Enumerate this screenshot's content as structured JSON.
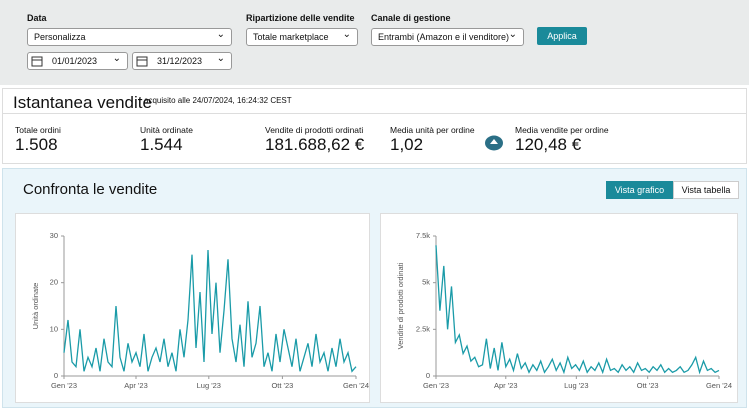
{
  "filters": {
    "date_label": "Data",
    "date_select": "Personalizza",
    "date_from": "01/01/2023",
    "date_to": "31/12/2023",
    "breakdown_label": "Ripartizione delle vendite",
    "breakdown_select": "Totale marketplace",
    "channel_label": "Canale di gestione",
    "channel_select": "Entrambi (Amazon e il venditore)",
    "apply": "Applica"
  },
  "snapshot": {
    "title": "Istantanea vendite",
    "acquired": "acquisito alle 24/07/2024, 16:24:32 CEST",
    "metrics": [
      {
        "label": "Totale ordini",
        "value": "1.508"
      },
      {
        "label": "Unità ordinate",
        "value": "1.544"
      },
      {
        "label": "Vendite di prodotti ordinati",
        "value": "181.688,62 €"
      },
      {
        "label": "Media unità per ordine",
        "value": "1,02"
      },
      {
        "label": "Media vendite per ordine",
        "value": "120,48 €"
      }
    ]
  },
  "compare": {
    "title": "Confronta le vendite",
    "view_chart": "Vista grafico",
    "view_table": "Vista tabella"
  },
  "chart_data": [
    {
      "type": "line",
      "y_label": "Unità ordinate",
      "color": "#1a9ba8",
      "x": [
        0,
        5,
        10,
        15,
        20,
        25,
        30,
        35,
        40,
        45,
        50,
        55,
        60,
        65,
        70,
        75,
        80,
        85,
        90,
        95,
        100,
        105,
        110,
        115,
        120,
        125,
        130,
        135,
        140,
        145,
        150,
        155,
        160,
        165,
        170,
        175,
        180,
        185,
        190,
        195,
        200,
        205,
        210,
        215,
        220,
        225,
        230,
        235,
        240,
        245,
        250,
        255,
        260,
        265,
        270,
        275,
        280,
        285,
        290,
        295,
        300,
        305,
        310,
        315,
        320,
        325,
        330,
        335,
        340,
        345,
        350,
        355,
        360,
        365
      ],
      "values": [
        5,
        12,
        3,
        2,
        10,
        1,
        4,
        2,
        6,
        1,
        8,
        3,
        2,
        15,
        4,
        1,
        7,
        3,
        5,
        2,
        9,
        1,
        4,
        6,
        3,
        8,
        2,
        5,
        1,
        10,
        4,
        12,
        26,
        6,
        18,
        3,
        27,
        9,
        20,
        5,
        14,
        25,
        8,
        3,
        11,
        2,
        16,
        4,
        7,
        15,
        2,
        5,
        1,
        9,
        3,
        10,
        6,
        2,
        8,
        1,
        4,
        7,
        2,
        9,
        3,
        5,
        1,
        6,
        2,
        8,
        3,
        5,
        1,
        2
      ],
      "xlim": [
        0,
        365
      ],
      "xticks": [
        {
          "value": 0,
          "label": "Gen '23"
        },
        {
          "value": 90,
          "label": "Apr '23"
        },
        {
          "value": 181,
          "label": "Lug '23"
        },
        {
          "value": 273,
          "label": "Ott '23"
        },
        {
          "value": 365,
          "label": "Gen '24"
        }
      ],
      "ylim": [
        0,
        30
      ],
      "yticks": [
        0,
        10,
        20,
        30
      ]
    },
    {
      "type": "line",
      "y_label": "Vendite di prodotti ordinati",
      "color": "#1a9ba8",
      "x": [
        0,
        5,
        10,
        15,
        20,
        25,
        30,
        35,
        40,
        45,
        50,
        55,
        60,
        65,
        70,
        75,
        80,
        85,
        90,
        95,
        100,
        105,
        110,
        115,
        120,
        125,
        130,
        135,
        140,
        145,
        150,
        155,
        160,
        165,
        170,
        175,
        180,
        185,
        190,
        195,
        200,
        205,
        210,
        215,
        220,
        225,
        230,
        235,
        240,
        245,
        250,
        255,
        260,
        265,
        270,
        275,
        280,
        285,
        290,
        295,
        300,
        305,
        310,
        315,
        320,
        325,
        330,
        335,
        340,
        345,
        350,
        355,
        360,
        365
      ],
      "values": [
        7000,
        3500,
        5900,
        2500,
        4800,
        1800,
        2200,
        1200,
        1600,
        800,
        1000,
        500,
        600,
        2000,
        400,
        1500,
        300,
        1800,
        500,
        900,
        300,
        1200,
        400,
        700,
        200,
        600,
        300,
        800,
        200,
        500,
        900,
        300,
        700,
        200,
        1000,
        400,
        600,
        300,
        800,
        200,
        500,
        300,
        700,
        200,
        900,
        300,
        400,
        200,
        600,
        300,
        500,
        200,
        700,
        300,
        400,
        200,
        500,
        300,
        600,
        200,
        400,
        200,
        300,
        500,
        200,
        300,
        600,
        1000,
        200,
        800,
        300,
        400,
        200,
        300
      ],
      "xlim": [
        0,
        365
      ],
      "xticks": [
        {
          "value": 0,
          "label": "Gen '23"
        },
        {
          "value": 90,
          "label": "Apr '23"
        },
        {
          "value": 181,
          "label": "Lug '23"
        },
        {
          "value": 273,
          "label": "Ott '23"
        },
        {
          "value": 365,
          "label": "Gen '24"
        }
      ],
      "ylim": [
        0,
        7500
      ],
      "yticks": [
        0,
        {
          "value": 2500,
          "label": "2.5k"
        },
        {
          "value": 5000,
          "label": "5k"
        },
        {
          "value": 7500,
          "label": "7.5k"
        }
      ]
    }
  ]
}
